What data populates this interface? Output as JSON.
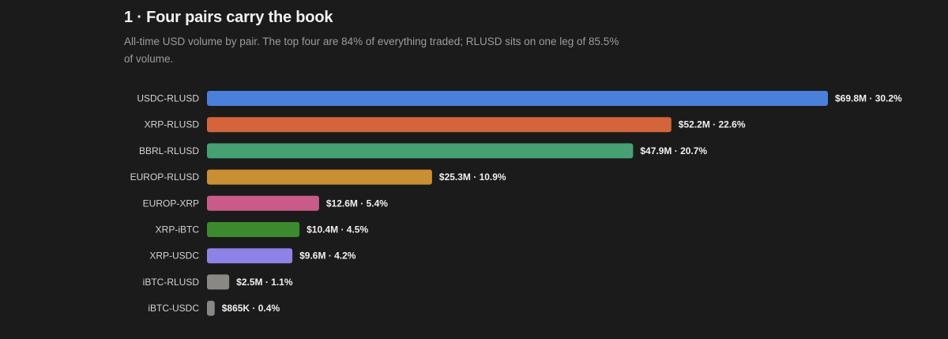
{
  "header": {
    "title": "1 · Four pairs carry the book",
    "subtitle": "All-time USD volume by pair. The top four are 84% of everything traded; RLUSD sits on one leg of 85.5% of volume."
  },
  "chart_data": {
    "type": "bar",
    "orientation": "horizontal",
    "categories": [
      "USDC-RLUSD",
      "XRP-RLUSD",
      "BBRL-RLUSD",
      "EUROP-RLUSD",
      "EUROP-XRP",
      "XRP-iBTC",
      "XRP-USDC",
      "iBTC-RLUSD",
      "iBTC-USDC"
    ],
    "values": [
      69.8,
      52.2,
      47.9,
      25.3,
      12.6,
      10.4,
      9.6,
      2.5,
      0.865
    ],
    "value_unit": "USD millions",
    "value_labels": [
      "$69.8M · 30.2%",
      "$52.2M · 22.6%",
      "$47.9M · 20.7%",
      "$25.3M · 10.9%",
      "$12.6M · 5.4%",
      "$10.4M · 4.5%",
      "$9.6M · 4.2%",
      "$2.5M · 1.1%",
      "$865K · 0.4%"
    ],
    "colors": [
      "#4b7fdc",
      "#d4643a",
      "#46a074",
      "#c98f33",
      "#c95b88",
      "#3c8a2e",
      "#8d82e6",
      "#8a8885",
      "#8a8885"
    ],
    "xlim": [
      0,
      69.8
    ],
    "grid": false,
    "legend": "none"
  }
}
